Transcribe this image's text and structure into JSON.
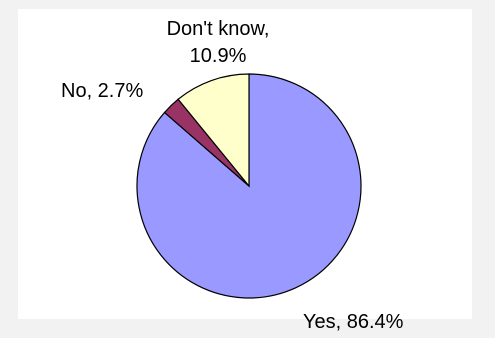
{
  "chart_data": {
    "type": "pie",
    "start_angle_deg": 0,
    "direction": "clockwise",
    "slices": [
      {
        "label": "Yes",
        "value": 86.4,
        "label_text": "Yes, 86.4%",
        "color": "#9999ff"
      },
      {
        "label": "No",
        "value": 2.7,
        "label_text": "No, 2.7%",
        "color": "#993366"
      },
      {
        "label": "Don't know",
        "value": 10.9,
        "label_text_lines": [
          "Don't know,",
          "10.9%"
        ],
        "color": "#ffffcc"
      }
    ],
    "border_color": "#000000",
    "background": "#ffffff",
    "outer_background": "#f2f2f2"
  }
}
